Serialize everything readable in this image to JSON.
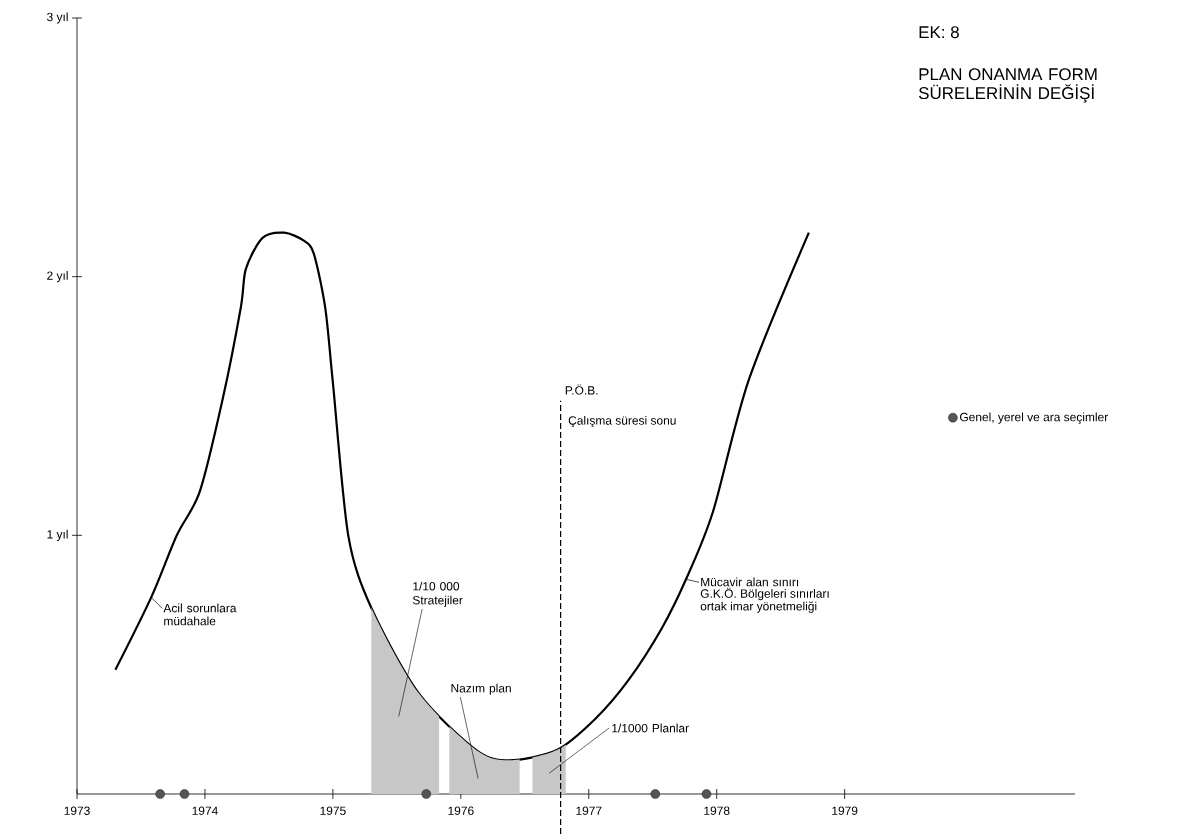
{
  "chart_data": {
    "type": "line",
    "title": "EK: 8",
    "subtitle": "PLAN ONANMA FORM SÜRELERİNİN DEĞİŞİ",
    "xlim": [
      1973,
      1980.8
    ],
    "ylim": [
      0,
      3
    ],
    "xticks": [
      1973,
      1974,
      1975,
      1976,
      1977,
      1978,
      1979
    ],
    "yticks": [
      {
        "value": 1,
        "label": "1 yıl"
      },
      {
        "value": 2,
        "label": "2 yıl"
      },
      {
        "value": 3,
        "label": "3 yıl"
      }
    ],
    "series": [
      {
        "color": "#000000",
        "x": [
          1973.3,
          1973.58,
          1973.78,
          1973.96,
          1974.14,
          1974.28,
          1974.32,
          1974.45,
          1974.62,
          1974.77,
          1974.85,
          1974.94,
          1975.0,
          1975.12,
          1975.3,
          1975.67,
          1976.12,
          1976.38,
          1976.75,
          1977.05,
          1977.31,
          1977.57,
          1977.76,
          1977.97,
          1978.25,
          1978.72
        ],
        "values": [
          0.48,
          0.76,
          1.0,
          1.17,
          1.53,
          1.88,
          2.03,
          2.15,
          2.17,
          2.14,
          2.09,
          1.88,
          1.59,
          1.0,
          0.72,
          0.39,
          0.17,
          0.13,
          0.17,
          0.29,
          0.44,
          0.64,
          0.83,
          1.09,
          1.6,
          2.17
        ]
      },
      {
        "type": "scatter",
        "name": "Genel, yerel ve ara seçimler",
        "color": "#555555",
        "x": [
          1973.65,
          1973.84,
          1975.73,
          1977.52,
          1977.92
        ],
        "values": [
          0,
          0,
          0,
          0,
          0
        ]
      }
    ],
    "bands": [
      {
        "axis": "x",
        "from": 1975.3,
        "to": 1975.83,
        "label": "1/10 000 Stratejiler"
      },
      {
        "axis": "x",
        "from": 1975.91,
        "to": 1976.46,
        "label": "Nazım plan"
      },
      {
        "axis": "x",
        "from": 1976.56,
        "to": 1976.82,
        "label": "1/1000 Planlar"
      }
    ],
    "ref_lines": [
      {
        "axis": "x",
        "value": 1976.78,
        "label": "Çalışma süresi sonu",
        "line_style": "dashed"
      }
    ],
    "annotations": [
      {
        "text": "Acil sorunlara müdahale",
        "x": 1973.58,
        "y": 0.76
      },
      {
        "text": "Mücavir alan sınırı",
        "x": 1977.76,
        "y": 0.83
      },
      "G.K.Ö. Bölgeleri sınırları",
      "ortak imar yönetmeliği",
      "P.Ö.B."
    ],
    "legend": "right",
    "grid": false
  }
}
